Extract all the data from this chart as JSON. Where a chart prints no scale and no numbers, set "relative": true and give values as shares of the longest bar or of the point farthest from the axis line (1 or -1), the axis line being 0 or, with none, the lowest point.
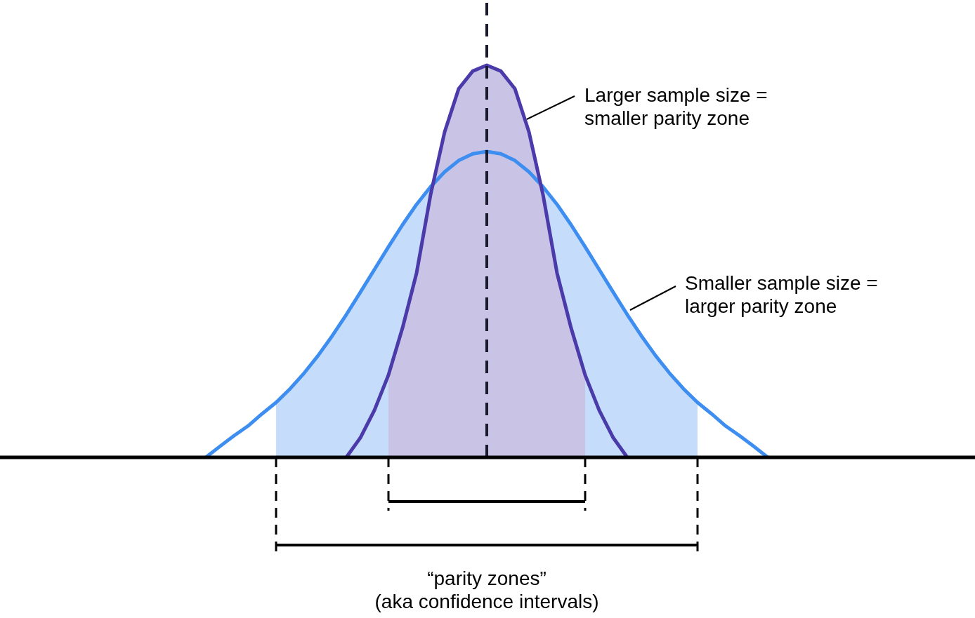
{
  "chart_data": {
    "type": "line",
    "relative": true,
    "categories": [
      null,
      null,
      null,
      null,
      null,
      null,
      null,
      null,
      null,
      null,
      null,
      null,
      null,
      null,
      null,
      null,
      null,
      null,
      null,
      null,
      null,
      null,
      null,
      null,
      null,
      null,
      null,
      null,
      null,
      null,
      null,
      null,
      null,
      null,
      null,
      null,
      null,
      null,
      null,
      null,
      null
    ],
    "series": [
      {
        "color": "#3d8ef0",
        "values": [
          0,
          0.028,
          0.055,
          0.08,
          0.111,
          0.14,
          0.175,
          0.215,
          0.26,
          0.31,
          0.364,
          0.421,
          0.479,
          0.537,
          0.593,
          0.645,
          0.69,
          0.728,
          0.757,
          0.774,
          0.78,
          0.774,
          0.757,
          0.728,
          0.69,
          0.645,
          0.593,
          0.537,
          0.479,
          0.421,
          0.364,
          0.31,
          0.26,
          0.215,
          0.175,
          0.14,
          0.111,
          0.08,
          0.055,
          0.028,
          0
        ],
        "lower": [
          null,
          null,
          null,
          null,
          null,
          0,
          0,
          0,
          0,
          0,
          0,
          0,
          0,
          0,
          0,
          0,
          0,
          0,
          0,
          0,
          0,
          0,
          0,
          0,
          0,
          0,
          0,
          0,
          0,
          0,
          0,
          0,
          0,
          0,
          0,
          0,
          null,
          null,
          null,
          null,
          null
        ],
        "upper": [
          null,
          null,
          null,
          null,
          null,
          0.14,
          0.175,
          0.215,
          0.26,
          0.31,
          0.364,
          0.421,
          0.479,
          0.537,
          0.593,
          0.645,
          0.69,
          0.728,
          0.757,
          0.774,
          0.78,
          0.774,
          0.757,
          0.728,
          0.69,
          0.645,
          0.593,
          0.537,
          0.479,
          0.421,
          0.364,
          0.31,
          0.26,
          0.215,
          0.175,
          0.14,
          null,
          null,
          null,
          null,
          null
        ]
      },
      {
        "color": "#4a3aaa",
        "values": [
          null,
          null,
          null,
          null,
          null,
          null,
          null,
          null,
          null,
          null,
          0,
          0.05,
          0.12,
          0.21,
          0.33,
          0.47,
          0.67,
          0.83,
          0.94,
          0.985,
          1,
          0.985,
          0.94,
          0.83,
          0.67,
          0.47,
          0.33,
          0.21,
          0.12,
          0.05,
          0,
          null,
          null,
          null,
          null,
          null,
          null,
          null,
          null,
          null,
          null
        ],
        "lower": [
          null,
          null,
          null,
          null,
          null,
          null,
          null,
          null,
          null,
          null,
          null,
          null,
          null,
          0,
          0,
          0,
          0,
          0,
          0,
          0,
          0,
          0,
          0,
          0,
          0,
          0,
          0,
          0,
          null,
          null,
          null,
          null,
          null,
          null,
          null,
          null,
          null,
          null,
          null,
          null,
          null
        ],
        "upper": [
          null,
          null,
          null,
          null,
          null,
          null,
          null,
          null,
          null,
          null,
          null,
          null,
          null,
          0.21,
          0.33,
          0.47,
          0.67,
          0.83,
          0.94,
          0.985,
          1,
          0.985,
          0.94,
          0.83,
          0.67,
          0.47,
          0.33,
          0.21,
          null,
          null,
          null,
          null,
          null,
          null,
          null,
          null,
          null,
          null,
          null,
          null,
          null
        ]
      }
    ],
    "annotations": [
      "Larger sample size =\nsmaller parity zone",
      "Smaller sample size =\nlarger parity zone",
      "“parity zones”\n(aka confidence intervals)"
    ]
  }
}
